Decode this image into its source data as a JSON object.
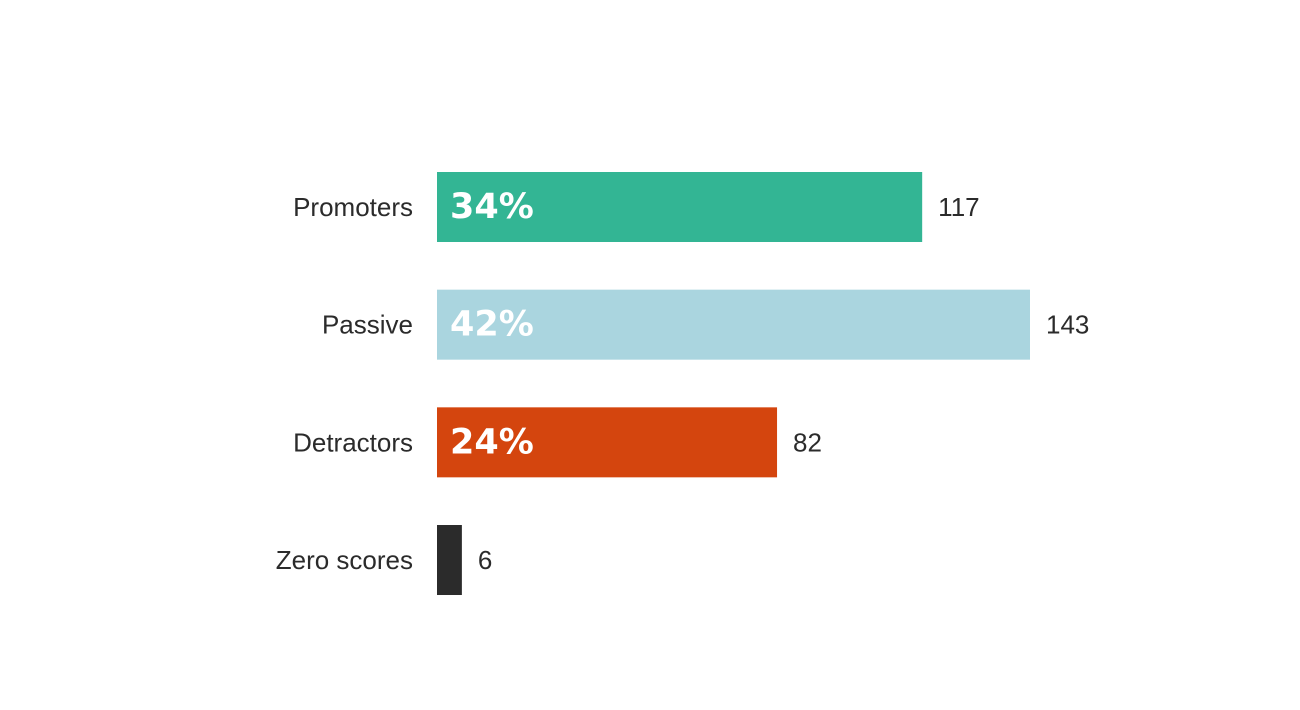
{
  "chart_data": {
    "type": "bar",
    "orientation": "horizontal",
    "categories": [
      "Promoters",
      "Passive",
      "Detractors",
      "Zero scores"
    ],
    "values": [
      117,
      143,
      82,
      6
    ],
    "percent_labels": [
      "34%",
      "42%",
      "24%",
      ""
    ],
    "colors": [
      "#33b594",
      "#aad5df",
      "#d4450e",
      "#2b2b2b"
    ],
    "title": "",
    "xlabel": "",
    "ylabel": "",
    "xlim": [
      0,
      143
    ],
    "grid": false,
    "legend": "none"
  }
}
